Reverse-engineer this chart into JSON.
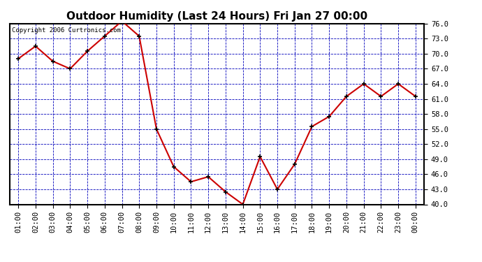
{
  "title": "Outdoor Humidity (Last 24 Hours) Fri Jan 27 00:00",
  "copyright_text": "Copyright 2006 Curtronics.com",
  "x_labels": [
    "01:00",
    "02:00",
    "03:00",
    "04:00",
    "05:00",
    "06:00",
    "07:00",
    "08:00",
    "09:00",
    "10:00",
    "11:00",
    "12:00",
    "13:00",
    "14:00",
    "15:00",
    "16:00",
    "17:00",
    "18:00",
    "19:00",
    "20:00",
    "21:00",
    "22:00",
    "23:00",
    "00:00"
  ],
  "y_values": [
    69.0,
    71.5,
    68.5,
    67.0,
    70.5,
    73.5,
    76.5,
    73.5,
    55.0,
    47.5,
    44.5,
    45.5,
    42.5,
    40.0,
    49.5,
    43.0,
    48.0,
    55.5,
    57.5,
    61.5,
    64.0,
    61.5,
    64.0,
    61.5
  ],
  "ylim": [
    40.0,
    76.0
  ],
  "yticks": [
    40.0,
    43.0,
    46.0,
    49.0,
    52.0,
    55.0,
    58.0,
    61.0,
    64.0,
    67.0,
    70.0,
    73.0,
    76.0
  ],
  "line_color": "#cc0000",
  "marker_color": "#000000",
  "bg_color": "#ffffff",
  "plot_bg_color": "#ffffff",
  "grid_color": "#0000bb",
  "border_color": "#000000",
  "title_color": "#000000",
  "title_fontsize": 11,
  "tick_fontsize": 7.5,
  "copyright_fontsize": 6.5
}
